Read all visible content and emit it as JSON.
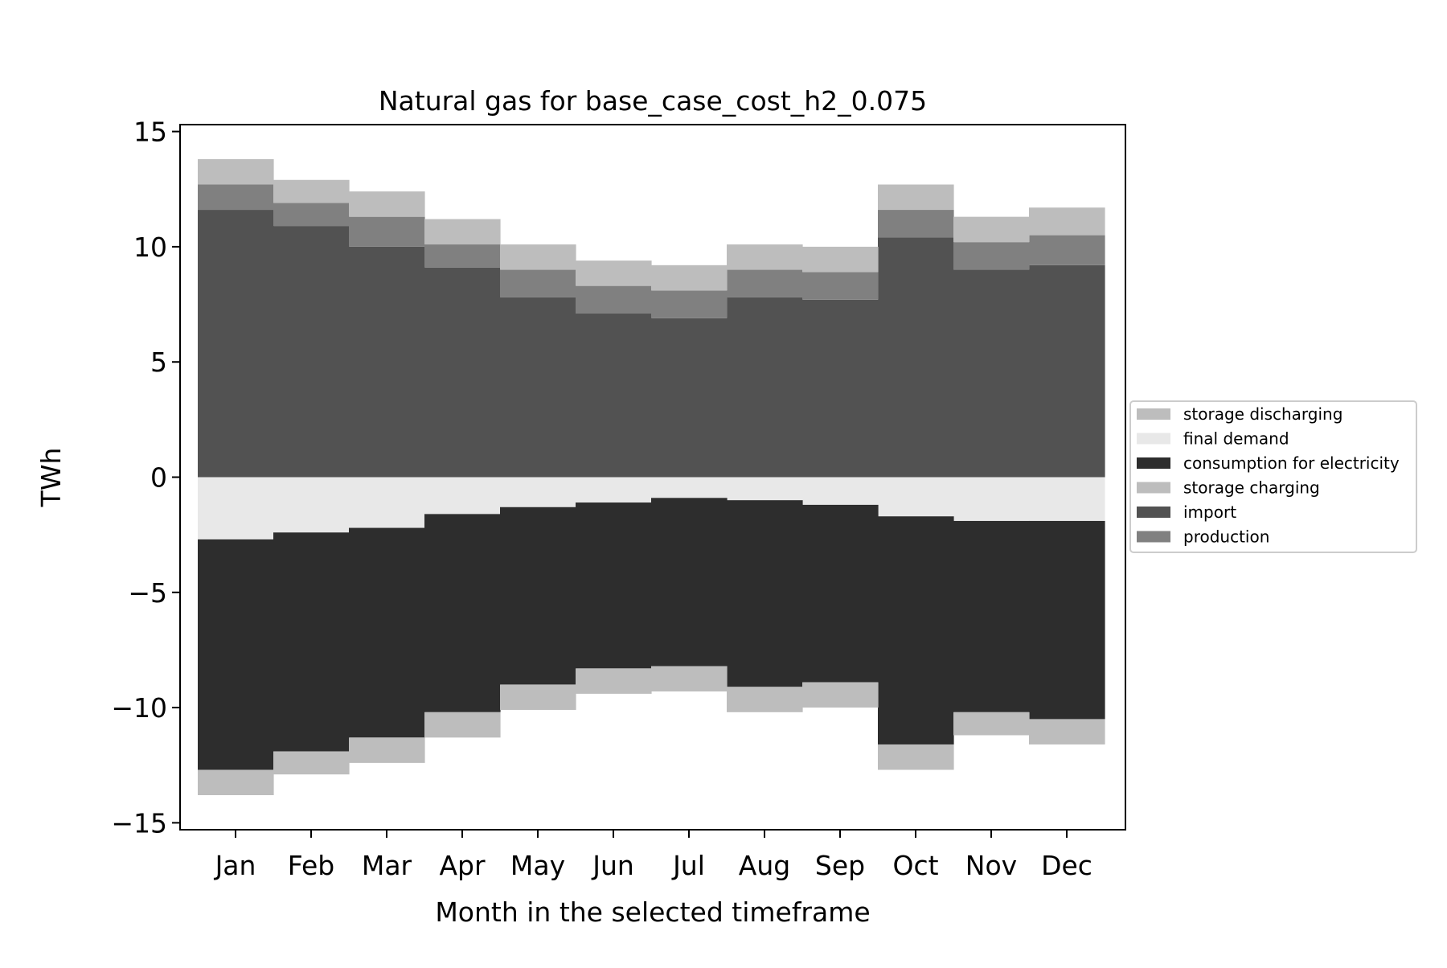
{
  "chart_data": {
    "type": "area",
    "title": "Natural gas for base_case_cost_h2_0.075",
    "xlabel": "Month in the selected timeframe",
    "ylabel": "TWh",
    "categories": [
      "Jan",
      "Feb",
      "Mar",
      "Apr",
      "May",
      "Jun",
      "Jul",
      "Aug",
      "Sep",
      "Oct",
      "Nov",
      "Dec"
    ],
    "ylim": [
      -15.3,
      15.3
    ],
    "yticks": [
      15,
      10,
      5,
      0,
      -5,
      -10,
      -15
    ],
    "ytick_labels": [
      "15",
      "10",
      "5",
      "0",
      "−5",
      "−10",
      "−15"
    ],
    "legend_position": "center-right (outside plot)",
    "stacking": "positive series stack upward from 0; negative series stack downward from 0",
    "series": [
      {
        "name": "import",
        "color": "#525252",
        "values": [
          11.6,
          10.9,
          10.0,
          9.1,
          7.8,
          7.1,
          6.9,
          7.8,
          7.7,
          10.4,
          9.0,
          9.2
        ]
      },
      {
        "name": "production",
        "color": "#808080",
        "values": [
          1.1,
          1.0,
          1.3,
          1.0,
          1.2,
          1.2,
          1.2,
          1.2,
          1.2,
          1.2,
          1.2,
          1.3
        ]
      },
      {
        "name": "storage discharging",
        "color": "#bdbdbd",
        "values": [
          1.1,
          1.0,
          1.1,
          1.1,
          1.1,
          1.1,
          1.1,
          1.1,
          1.1,
          1.1,
          1.1,
          1.2
        ]
      },
      {
        "name": "final demand",
        "color": "#e8e8e8",
        "values": [
          -2.7,
          -2.4,
          -2.2,
          -1.6,
          -1.3,
          -1.1,
          -0.9,
          -1.0,
          -1.2,
          -1.7,
          -1.9,
          -1.9
        ]
      },
      {
        "name": "consumption for electricity",
        "color": "#2d2d2d",
        "values": [
          -10.0,
          -9.5,
          -9.1,
          -8.6,
          -7.7,
          -7.2,
          -7.3,
          -8.1,
          -7.7,
          -9.9,
          -8.3,
          -8.6
        ]
      },
      {
        "name": "storage charging",
        "color": "#bdbdbd",
        "values": [
          -1.1,
          -1.0,
          -1.1,
          -1.1,
          -1.1,
          -1.1,
          -1.1,
          -1.1,
          -1.1,
          -1.1,
          -1.0,
          -1.1
        ]
      }
    ],
    "legend_order": [
      "storage discharging",
      "final demand",
      "consumption for electricity",
      "storage charging",
      "import",
      "production"
    ]
  }
}
